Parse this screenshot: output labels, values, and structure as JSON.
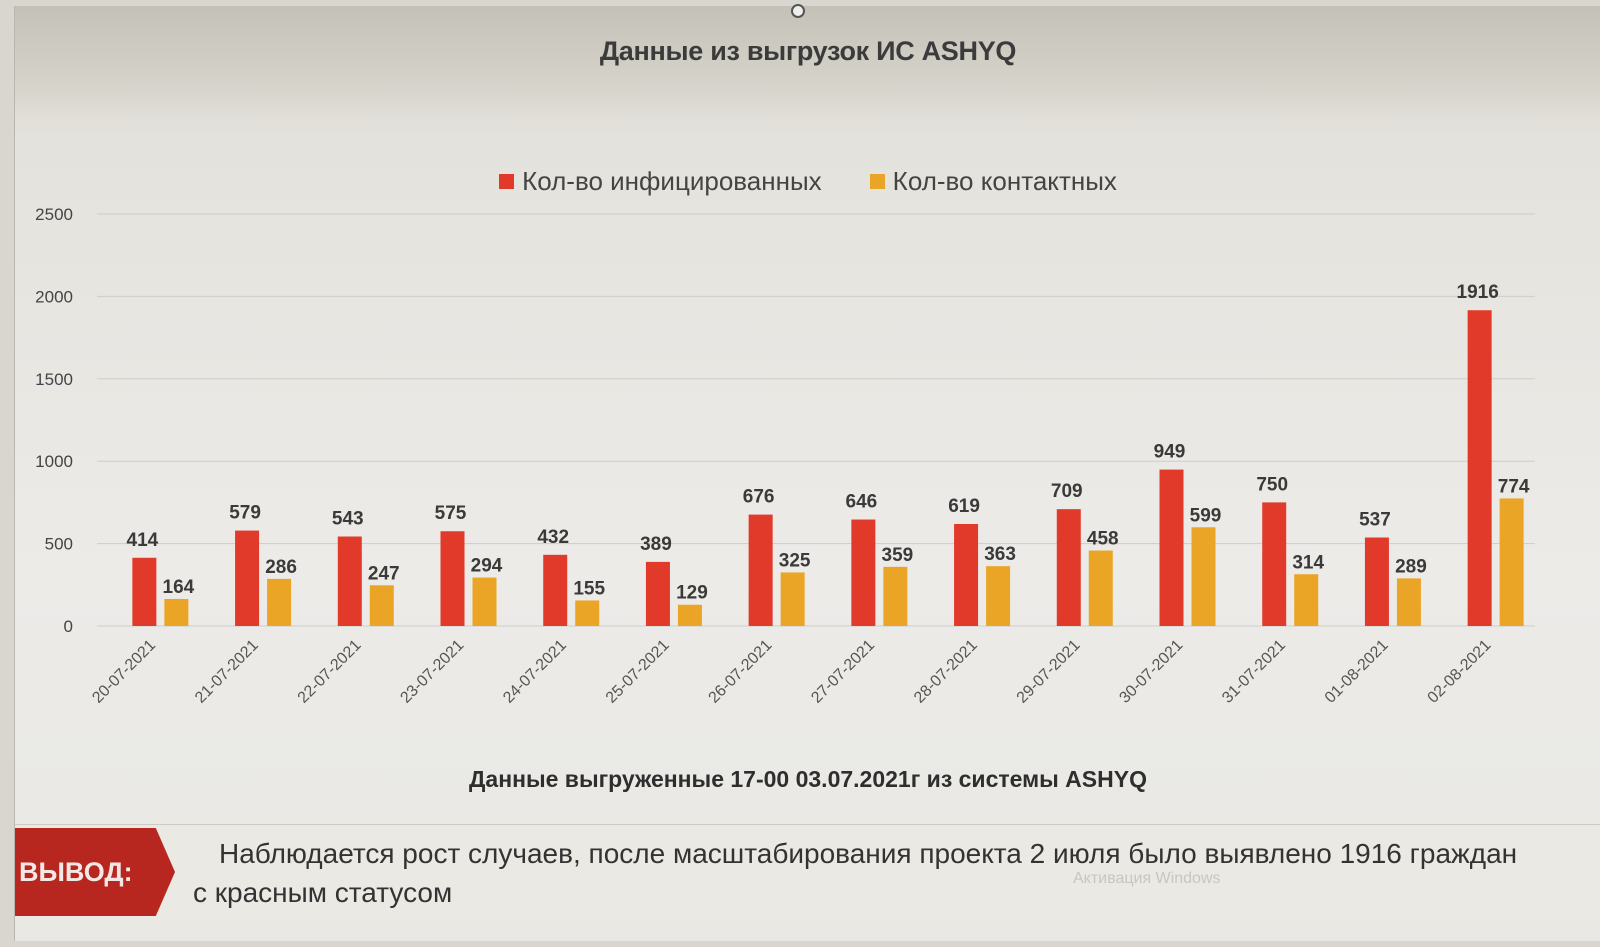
{
  "title": "Данные из выгрузок ИС ASHYQ",
  "legend": [
    {
      "label": "Кол-во инфицированных",
      "color": "#e23a2a"
    },
    {
      "label": "Кол-во контактных",
      "color": "#eba526"
    }
  ],
  "chart_data": {
    "type": "bar",
    "title": "Данные из выгрузок ИС ASHYQ",
    "categories": [
      "20-07-2021",
      "21-07-2021",
      "22-07-2021",
      "23-07-2021",
      "24-07-2021",
      "25-07-2021",
      "26-07-2021",
      "27-07-2021",
      "28-07-2021",
      "29-07-2021",
      "30-07-2021",
      "31-07-2021",
      "01-08-2021",
      "02-08-2021"
    ],
    "series": [
      {
        "name": "Кол-во инфицированных",
        "color": "#e23a2a",
        "values": [
          414,
          579,
          543,
          575,
          432,
          389,
          676,
          646,
          619,
          709,
          949,
          750,
          537,
          1916
        ]
      },
      {
        "name": "Кол-во контактных",
        "color": "#eba526",
        "values": [
          164,
          286,
          247,
          294,
          155,
          129,
          325,
          359,
          363,
          458,
          599,
          314,
          289,
          774
        ]
      }
    ],
    "yticks": [
      0,
      500,
      1000,
      1500,
      2000,
      2500
    ],
    "ylim": [
      0,
      2500
    ],
    "grid": true,
    "legend_position": "top",
    "xlabel": "",
    "ylabel": ""
  },
  "footnote": "Данные выгруженные 17-00 03.07.2021г из системы ASHYQ",
  "conclusion": {
    "tag": "ВЫВОД:",
    "line1": "Наблюдается рост случаев, после масштабирования проекта 2 июля было выявлено 1916 граждан",
    "line2": "с красным статусом"
  },
  "watermark": "Активация Windows"
}
